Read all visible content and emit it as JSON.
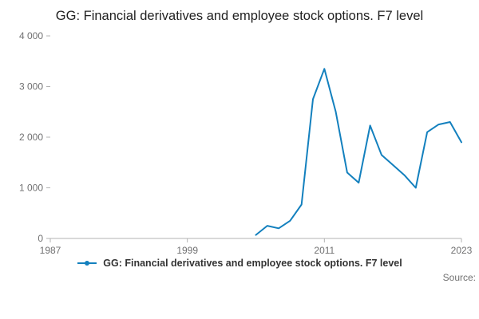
{
  "title": "GG: Financial derivatives and employee stock options. F7 level",
  "source_label": "Source:",
  "legend": {
    "label": "GG: Financial derivatives and employee stock options. F7 level"
  },
  "colors": {
    "line": "#1380be",
    "axis": "#b3b3b3",
    "tick_text": "#707071",
    "title_text": "#222222"
  },
  "chart_data": {
    "type": "line",
    "title": "GG: Financial derivatives and employee stock options. F7 level",
    "xlabel": "",
    "ylabel": "",
    "grid": false,
    "legend_position": "bottom",
    "xlim": [
      1987,
      2023
    ],
    "ylim": [
      0,
      4000
    ],
    "x_ticks": [
      1987,
      1999,
      2011,
      2023
    ],
    "y_ticks": [
      0,
      1000,
      2000,
      3000,
      4000
    ],
    "y_tick_labels": [
      "0",
      "1 000",
      "2 000",
      "3 000",
      "4 000"
    ],
    "x": [
      2005,
      2006,
      2007,
      2008,
      2009,
      2010,
      2011,
      2012,
      2013,
      2014,
      2015,
      2016,
      2017,
      2018,
      2019,
      2020,
      2021,
      2022,
      2023
    ],
    "values": [
      70,
      250,
      200,
      350,
      670,
      2750,
      3350,
      2500,
      1300,
      1100,
      2230,
      1650,
      1450,
      1250,
      1000,
      2100,
      2250,
      2300,
      1900
    ]
  }
}
